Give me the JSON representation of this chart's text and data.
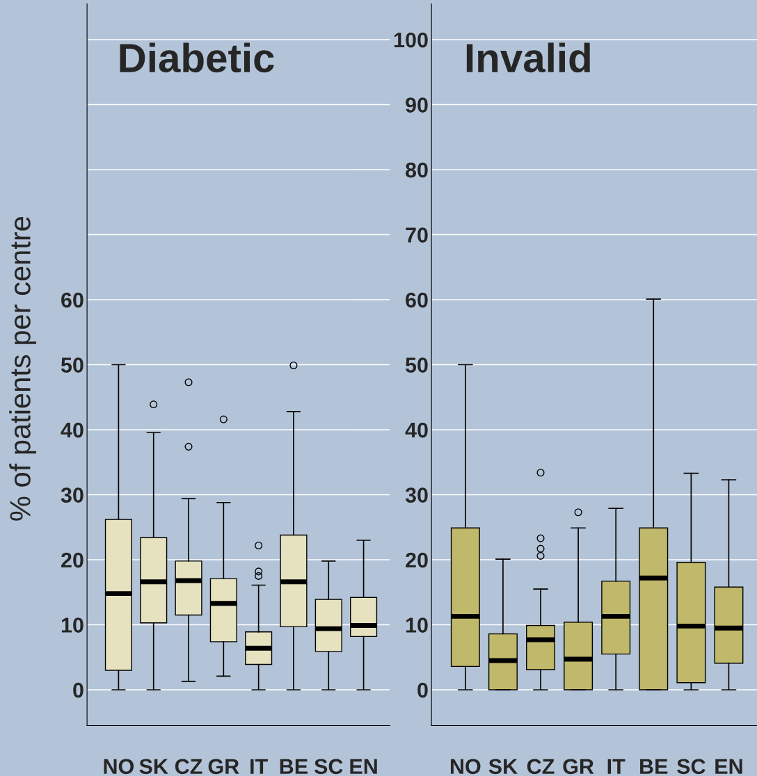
{
  "chart_data": [
    {
      "type": "box",
      "title": "Diabetic",
      "ylabel": "% of patients per centre",
      "categories": [
        "NO",
        "SK",
        "CZ",
        "GR",
        "IT",
        "BE",
        "SC",
        "EN"
      ],
      "color": "#e6e2c0",
      "ylim": [
        -5.5,
        105.5
      ],
      "yticks": [
        0,
        10,
        20,
        30,
        40,
        50,
        60,
        {
          "value": 70,
          "label": null
        },
        {
          "value": 80,
          "label": null
        },
        {
          "value": 90,
          "label": null
        },
        {
          "value": 100,
          "label": null
        }
      ],
      "grid": "y",
      "boxes": [
        {
          "low": 0,
          "q1": 3.0,
          "median": 14.8,
          "q3": 26.2,
          "high": 50
        },
        {
          "low": 0,
          "q1": 10.3,
          "median": 16.6,
          "q3": 23.4,
          "high": 39.6,
          "outliers": [
            43.9
          ]
        },
        {
          "low": 1.3,
          "q1": 11.5,
          "median": 16.8,
          "q3": 19.8,
          "high": 29.4,
          "outliers": [
            37.4,
            47.3
          ]
        },
        {
          "low": 2.1,
          "q1": 7.4,
          "median": 13.3,
          "q3": 17.1,
          "high": 28.8,
          "outliers": [
            41.6
          ]
        },
        {
          "low": 0,
          "q1": 3.9,
          "median": 6.4,
          "q3": 8.9,
          "high": 16.1,
          "outliers": [
            17.5,
            18.2,
            22.2
          ]
        },
        {
          "low": 0,
          "q1": 9.7,
          "median": 16.6,
          "q3": 23.8,
          "high": 42.8,
          "outliers": [
            49.9
          ]
        },
        {
          "low": 0,
          "q1": 5.9,
          "median": 9.4,
          "q3": 13.9,
          "high": 19.8
        },
        {
          "low": 0,
          "q1": 8.2,
          "median": 9.9,
          "q3": 14.2,
          "high": 23.0
        }
      ]
    },
    {
      "type": "box",
      "title": "Invalid",
      "categories": [
        "NO",
        "SK",
        "CZ",
        "GR",
        "IT",
        "BE",
        "SC",
        "EN"
      ],
      "color": "#c0b86a",
      "ylim": [
        -5.5,
        105.5
      ],
      "yticks": [
        0,
        10,
        20,
        30,
        40,
        50,
        60,
        70,
        80,
        90,
        100
      ],
      "grid": "y",
      "boxes": [
        {
          "low": 0,
          "q1": 3.6,
          "median": 11.3,
          "q3": 24.9,
          "high": 50
        },
        {
          "low": 0,
          "q1": 0,
          "median": 4.5,
          "q3": 8.6,
          "high": 20.1
        },
        {
          "low": 0,
          "q1": 3.1,
          "median": 7.7,
          "q3": 9.9,
          "high": 15.5,
          "outliers": [
            20.6,
            21.7,
            23.3,
            33.4
          ]
        },
        {
          "low": 0,
          "q1": 0,
          "median": 4.7,
          "q3": 10.4,
          "high": 24.9,
          "outliers": [
            27.3
          ]
        },
        {
          "low": 0,
          "q1": 5.5,
          "median": 11.3,
          "q3": 16.7,
          "high": 27.9
        },
        {
          "low": 0,
          "q1": 0,
          "median": 17.2,
          "q3": 24.9,
          "high": 60.1
        },
        {
          "low": 0,
          "q1": 1.1,
          "median": 9.8,
          "q3": 19.6,
          "high": 33.3
        },
        {
          "low": 0,
          "q1": 4.1,
          "median": 9.5,
          "q3": 15.8,
          "high": 32.3
        }
      ]
    }
  ]
}
